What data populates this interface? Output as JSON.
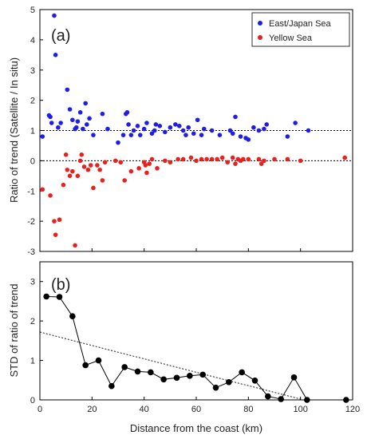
{
  "chart_data": [
    {
      "type": "scatter",
      "panel_label": "(a)",
      "xlabel": "",
      "ylabel": "Ratio of trend (Satellite / In situ)",
      "xlim": [
        0,
        120
      ],
      "ylim": [
        -3,
        5
      ],
      "xticks": [
        0,
        20,
        40,
        60,
        80,
        100,
        120
      ],
      "yticks": [
        -3,
        -2,
        -1,
        0,
        1,
        2,
        3,
        4,
        5
      ],
      "xticklabels_visible": false,
      "reference_lines": [
        {
          "y": 1,
          "style": "dotted"
        },
        {
          "y": 0,
          "style": "dotted"
        }
      ],
      "legend": {
        "position": "top-right"
      },
      "series": [
        {
          "name": "East/Japan Sea",
          "color": "#1e1ee8",
          "points": [
            [
              1.0,
              0.8
            ],
            [
              3.5,
              1.5
            ],
            [
              4.0,
              1.45
            ],
            [
              4.5,
              1.25
            ],
            [
              5.5,
              4.8
            ],
            [
              6.0,
              3.5
            ],
            [
              7.0,
              1.1
            ],
            [
              8.0,
              1.25
            ],
            [
              10.5,
              2.35
            ],
            [
              11.5,
              1.7
            ],
            [
              12.5,
              1.35
            ],
            [
              13.5,
              1.05
            ],
            [
              14.0,
              1.1
            ],
            [
              14.5,
              1.3
            ],
            [
              15.5,
              1.6
            ],
            [
              16.5,
              1.05
            ],
            [
              17.5,
              1.9
            ],
            [
              18.0,
              1.2
            ],
            [
              19.0,
              1.4
            ],
            [
              20.5,
              0.85
            ],
            [
              24.0,
              1.55
            ],
            [
              26.0,
              1.05
            ],
            [
              30.0,
              0.6
            ],
            [
              32.0,
              0.85
            ],
            [
              33.0,
              1.55
            ],
            [
              33.5,
              1.6
            ],
            [
              34.0,
              1.2
            ],
            [
              35.0,
              0.85
            ],
            [
              36.0,
              1.0
            ],
            [
              37.5,
              1.15
            ],
            [
              38.5,
              0.85
            ],
            [
              40.0,
              1.05
            ],
            [
              41.0,
              1.25
            ],
            [
              43.0,
              0.9
            ],
            [
              44.0,
              1.0
            ],
            [
              44.5,
              1.2
            ],
            [
              46.0,
              1.15
            ],
            [
              48.0,
              0.95
            ],
            [
              50.0,
              1.1
            ],
            [
              52.0,
              1.2
            ],
            [
              53.5,
              1.15
            ],
            [
              55.0,
              1.0
            ],
            [
              56.0,
              0.85
            ],
            [
              57.0,
              1.1
            ],
            [
              59.0,
              0.9
            ],
            [
              60.5,
              1.35
            ],
            [
              62.0,
              0.85
            ],
            [
              63.0,
              1.05
            ],
            [
              66.0,
              1.0
            ],
            [
              69.0,
              0.85
            ],
            [
              73.0,
              1.0
            ],
            [
              74.0,
              0.9
            ],
            [
              75.0,
              1.45
            ],
            [
              77.0,
              0.8
            ],
            [
              79.0,
              0.75
            ],
            [
              80.0,
              0.7
            ],
            [
              82.0,
              1.1
            ],
            [
              84.0,
              1.0
            ],
            [
              86.0,
              1.05
            ],
            [
              87.0,
              1.2
            ],
            [
              95.0,
              0.8
            ],
            [
              98.0,
              1.25
            ],
            [
              103.0,
              1.0
            ]
          ]
        },
        {
          "name": "Yellow Sea",
          "color": "#e8201e",
          "points": [
            [
              1.0,
              -0.95
            ],
            [
              4.0,
              -1.15
            ],
            [
              5.5,
              -2.0
            ],
            [
              6.0,
              -2.45
            ],
            [
              7.5,
              -1.95
            ],
            [
              9.0,
              -0.8
            ],
            [
              10.0,
              0.2
            ],
            [
              10.5,
              -0.3
            ],
            [
              11.5,
              -0.5
            ],
            [
              12.5,
              -0.35
            ],
            [
              13.5,
              -2.8
            ],
            [
              14.5,
              -0.5
            ],
            [
              15.5,
              0.0
            ],
            [
              16.0,
              0.2
            ],
            [
              17.0,
              -0.2
            ],
            [
              18.5,
              -0.3
            ],
            [
              19.5,
              -0.15
            ],
            [
              20.5,
              -0.9
            ],
            [
              22.0,
              -0.15
            ],
            [
              23.0,
              -0.3
            ],
            [
              24.0,
              -0.65
            ],
            [
              25.0,
              -0.05
            ],
            [
              29.0,
              0.0
            ],
            [
              31.0,
              -0.05
            ],
            [
              32.5,
              -0.65
            ],
            [
              35.0,
              -0.35
            ],
            [
              38.0,
              -0.25
            ],
            [
              40.0,
              -0.05
            ],
            [
              40.5,
              -0.15
            ],
            [
              41.0,
              -0.4
            ],
            [
              42.0,
              -0.1
            ],
            [
              43.0,
              0.05
            ],
            [
              45.0,
              -0.25
            ],
            [
              48.0,
              0.0
            ],
            [
              50.0,
              -0.05
            ],
            [
              53.0,
              0.05
            ],
            [
              55.0,
              0.05
            ],
            [
              58.0,
              0.1
            ],
            [
              60.0,
              0.0
            ],
            [
              62.0,
              0.05
            ],
            [
              64.0,
              0.05
            ],
            [
              66.0,
              0.05
            ],
            [
              68.0,
              0.05
            ],
            [
              70.0,
              0.1
            ],
            [
              72.0,
              -0.05
            ],
            [
              74.0,
              0.1
            ],
            [
              75.0,
              -0.1
            ],
            [
              76.0,
              0.05
            ],
            [
              77.0,
              0.0
            ],
            [
              78.0,
              0.05
            ],
            [
              80.0,
              0.05
            ],
            [
              84.0,
              0.05
            ],
            [
              85.0,
              -0.1
            ],
            [
              86.0,
              0.0
            ],
            [
              90.0,
              0.05
            ],
            [
              95.0,
              0.05
            ],
            [
              100.0,
              0.0
            ],
            [
              117.0,
              0.1
            ]
          ]
        }
      ]
    },
    {
      "type": "line",
      "panel_label": "(b)",
      "xlabel": "Distance from the coast (km)",
      "ylabel": "STD of ratio of trend",
      "xlim": [
        0,
        120
      ],
      "ylim": [
        0,
        3.5
      ],
      "xticks": [
        0,
        20,
        40,
        60,
        80,
        100,
        120
      ],
      "yticks": [
        0,
        1,
        2,
        3
      ],
      "trend_line": {
        "style": "dashed",
        "points": [
          [
            0,
            1.72
          ],
          [
            100,
            0.02
          ]
        ]
      },
      "series": [
        {
          "name": "",
          "color": "#000000",
          "x": [
            2.5,
            7.5,
            12.5,
            17.5,
            22.5,
            27.5,
            32.5,
            37.5,
            42.5,
            47.5,
            52.5,
            57.5,
            62.5,
            67.5,
            72.5,
            77.5,
            82.5,
            87.5,
            92.5,
            97.5,
            102.5,
            117.5
          ],
          "y": [
            2.62,
            2.61,
            2.12,
            0.88,
            1.0,
            0.35,
            0.83,
            0.72,
            0.7,
            0.52,
            0.56,
            0.61,
            0.64,
            0.31,
            0.45,
            0.7,
            0.49,
            0.09,
            0.02,
            0.57,
            0.0,
            0.0
          ]
        }
      ]
    }
  ]
}
